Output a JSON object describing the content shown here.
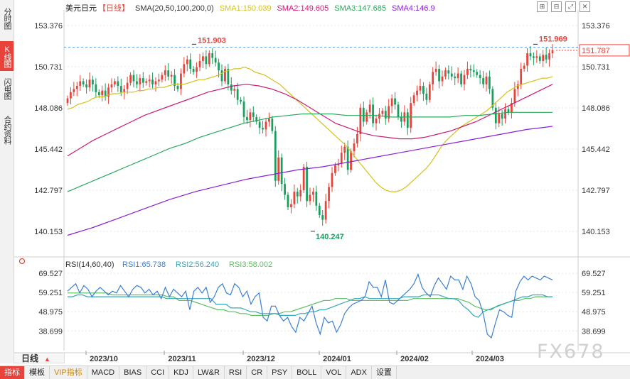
{
  "side_tabs": [
    {
      "label": "分时图",
      "active": false
    },
    {
      "label": "K线图",
      "active": true
    },
    {
      "label": "闪电图",
      "active": false
    },
    {
      "label": "合约资料",
      "active": false
    }
  ],
  "legend": {
    "title": "美元日元",
    "period": "【日线】",
    "sma_label": "SMA(20,50,100,200,0)",
    "sma1": "SMA1:150.039",
    "sma2": "SMA2:149.605",
    "sma3": "SMA3:147.685",
    "sma4": "SMA4:146.9"
  },
  "colors": {
    "up": "#e8433a",
    "down": "#1a9e5e",
    "sma1": "#d4c21b",
    "sma2": "#cc1a73",
    "sma3": "#2aa85b",
    "sma4": "#8a1fd6",
    "rsi1": "#3a7fd6",
    "rsi2": "#31a7b8",
    "rsi3": "#5cbf63",
    "grid": "#e6e6e6",
    "last": "#e8433a"
  },
  "chart_data": {
    "type": "candlestick",
    "title": "美元日元 日线",
    "y_ticks": [
      "153.376",
      "150.731",
      "148.086",
      "145.442",
      "142.797",
      "140.153"
    ],
    "ylim": [
      138.6,
      154.2
    ],
    "x_ticks": [
      "2023/10",
      "2023/11",
      "2023/12",
      "2024/01",
      "2024/02",
      "2024/03"
    ],
    "last_price": "151.787",
    "high_label": "151.903",
    "high2_label": "151.969",
    "low_label": "140.247",
    "closes": [
      148.7,
      149.1,
      149.3,
      149.5,
      149.8,
      149.6,
      149.4,
      149.9,
      149.6,
      149.1,
      148.9,
      149.2,
      148.8,
      149.4,
      149.6,
      149.8,
      149.5,
      149.1,
      149.3,
      149.7,
      150.2,
      149.8,
      149.6,
      150.0,
      149.7,
      149.8,
      149.9,
      149.6,
      149.8,
      149.9,
      150.2,
      150.5,
      150.1,
      150.2,
      149.5,
      149.3,
      150.3,
      150.9,
      151.2,
      150.6,
      150.4,
      150.7,
      151.1,
      151.4,
      150.9,
      151.6,
      151.3,
      151.0,
      150.5,
      149.8,
      150.6,
      149.6,
      149.2,
      149.3,
      148.6,
      148.5,
      147.5,
      147.3,
      147.8,
      147.5,
      147.2,
      146.8,
      146.7,
      147.2,
      147.4,
      146.6,
      143.4,
      144.9,
      143.2,
      142.5,
      141.7,
      141.9,
      142.7,
      142.4,
      142.8,
      144.3,
      142.1,
      142.5,
      142.7,
      141.8,
      141.2,
      140.9,
      142.1,
      143.0,
      143.9,
      144.4,
      144.5,
      145.2,
      145.6,
      144.1,
      145.3,
      145.8,
      146.4,
      148.1,
      147.2,
      147.8,
      148.3,
      147.1,
      147.4,
      147.7,
      147.9,
      147.4,
      148.2,
      148.7,
      148.3,
      147.5,
      147.2,
      147.8,
      146.8,
      148.4,
      148.9,
      149.2,
      149.5,
      149.0,
      148.6,
      149.6,
      150.4,
      150.6,
      149.8,
      150.1,
      150.5,
      150.3,
      150.1,
      150.0,
      150.3,
      149.6,
      150.2,
      150.6,
      150.5,
      150.4,
      150.2,
      150.0,
      149.6,
      150.1,
      149.3,
      148.1,
      147.1,
      147.7,
      147.4,
      148.0,
      147.8,
      148.4,
      149.3,
      149.6,
      150.6,
      150.8,
      151.6,
      151.4,
      151.3,
      151.4,
      151.1,
      151.5,
      151.2,
      151.6,
      151.8
    ],
    "sma1": [
      148.0,
      148.1,
      148.3,
      148.4,
      148.5,
      148.7,
      148.8,
      148.8,
      148.9,
      149.0,
      149.0,
      149.1,
      149.1,
      149.1,
      149.2,
      149.2,
      149.3,
      149.3,
      149.4,
      149.4,
      149.5,
      149.6,
      149.6,
      149.6,
      149.7,
      149.8,
      149.9,
      149.9,
      150.0,
      150.1,
      150.2,
      150.4,
      150.5,
      150.6,
      150.6,
      150.7,
      150.6,
      150.4,
      150.3,
      150.2,
      150.0,
      149.8,
      149.6,
      149.3,
      149.0,
      148.7,
      148.4,
      148.1,
      147.8,
      147.5,
      147.2,
      146.9,
      146.6,
      146.3,
      146.0,
      145.7,
      145.3,
      144.9,
      144.5,
      144.1,
      143.7,
      143.3,
      143.0,
      142.8,
      142.7,
      142.7,
      142.8,
      143.0,
      143.3,
      143.6,
      143.9,
      144.2,
      144.6,
      145.1,
      145.6,
      146.0,
      146.3,
      146.6,
      146.9,
      147.1,
      147.3,
      147.5,
      147.7,
      147.9,
      148.2,
      148.5,
      148.8,
      149.1,
      149.3,
      149.5,
      149.6,
      149.7,
      149.8,
      149.9,
      150.0,
      150.0,
      150.1
    ],
    "sma2": [
      145.0,
      145.5,
      146.0,
      146.4,
      146.8,
      147.2,
      147.6,
      147.9,
      148.2,
      148.5,
      148.8,
      149.1,
      149.3,
      149.5,
      149.6,
      149.5,
      149.3,
      149.0,
      148.6,
      148.1,
      147.6,
      147.1,
      146.8,
      146.5,
      146.3,
      146.2,
      146.1,
      146.1,
      146.2,
      146.4,
      146.6,
      146.9,
      147.2,
      147.6,
      148.0,
      148.4,
      148.8,
      149.2,
      149.6
    ],
    "sma3": [
      142.7,
      143.1,
      143.5,
      143.9,
      144.3,
      144.7,
      145.1,
      145.5,
      145.8,
      146.2,
      146.5,
      146.8,
      147.1,
      147.3,
      147.5,
      147.6,
      147.7,
      147.7,
      147.7,
      147.6,
      147.6,
      147.6,
      147.5,
      147.5,
      147.5,
      147.5,
      147.5,
      147.6,
      147.6,
      147.7,
      147.8,
      147.8,
      147.8,
      147.8
    ],
    "sma4": [
      139.9,
      140.4,
      141.0,
      141.6,
      142.2,
      142.7,
      143.1,
      143.5,
      143.8,
      144.1,
      144.3,
      144.6,
      144.9,
      145.2,
      145.5,
      145.8,
      146.1,
      146.4,
      146.7,
      146.9
    ],
    "rsi": {
      "label": "RSI(14,60,40)",
      "rsi1": "RSI1:65.738",
      "rsi2": "RSI2:56.240",
      "rsi3": "RSI3:58.002",
      "y_ticks": [
        "69.527",
        "59.251",
        "48.975",
        "38.699"
      ],
      "ylim": [
        33.5,
        74.5
      ],
      "rsi1_values": [
        60,
        62,
        64,
        59,
        63,
        61,
        57,
        60,
        62,
        60,
        58,
        60,
        59,
        63,
        60,
        57,
        61,
        63,
        62,
        59,
        61,
        58,
        60,
        56,
        62,
        57,
        61,
        59,
        57,
        60,
        50,
        60,
        62,
        59,
        62,
        54,
        57,
        62,
        64,
        59,
        58,
        64,
        62,
        57,
        60,
        53,
        57,
        59,
        46,
        44,
        52,
        52,
        47,
        44,
        46,
        41,
        38,
        46,
        44,
        48,
        52,
        43,
        37,
        46,
        43,
        44,
        38,
        42,
        48,
        51,
        53,
        54,
        55,
        57,
        65,
        62,
        62,
        57,
        66,
        54,
        53,
        55,
        57,
        59,
        61,
        64,
        69,
        62,
        59,
        57,
        63,
        67,
        64,
        61,
        68,
        66,
        66,
        61,
        68,
        64,
        57,
        55,
        48,
        37,
        35,
        43,
        50,
        49,
        47,
        46,
        60,
        65,
        68,
        66,
        68,
        67,
        66,
        68,
        67,
        66
      ],
      "rsi2_values": [
        57,
        57,
        58,
        58,
        57,
        57,
        57,
        57,
        57,
        57,
        57,
        57,
        57,
        57,
        57,
        57,
        57,
        57,
        57,
        57,
        56,
        56,
        56,
        56,
        56,
        56,
        56,
        56,
        56,
        56,
        53,
        53,
        53,
        51,
        51,
        51,
        50,
        49,
        49,
        48,
        48,
        48,
        48,
        47,
        47,
        47,
        47,
        48,
        48,
        49,
        49,
        50,
        50,
        51,
        52,
        53,
        54,
        55,
        56,
        56,
        57,
        56,
        56,
        56,
        56,
        56,
        56,
        56,
        57,
        57,
        57,
        57,
        58,
        58,
        58,
        58,
        57,
        56,
        56,
        55,
        52,
        50,
        47,
        46,
        49,
        50,
        51,
        52,
        53,
        54,
        55,
        56,
        57,
        57,
        58,
        58,
        58,
        57,
        57
      ],
      "rsi3_values": [
        59,
        59,
        59,
        59,
        59,
        59,
        59,
        59,
        58,
        58,
        58,
        58,
        58,
        58,
        58,
        58,
        58,
        58,
        57,
        57,
        55,
        55,
        55,
        54,
        53,
        52,
        51,
        50,
        50,
        49,
        49,
        48,
        48,
        47,
        47,
        47,
        47,
        48,
        48,
        49,
        49,
        50,
        51,
        52,
        53,
        54,
        55,
        55,
        56,
        56,
        56,
        55,
        55,
        55,
        55,
        55,
        55,
        55,
        55,
        55,
        55,
        55,
        56,
        56,
        56,
        56,
        56,
        56,
        56,
        56,
        56,
        55,
        54,
        52,
        51,
        50,
        50,
        52,
        53,
        54,
        55,
        55,
        56,
        56,
        57,
        57,
        57,
        57
      ]
    }
  },
  "bottom_tab": {
    "label": "日线"
  },
  "toolbar": [
    {
      "label": "指标",
      "style": "first"
    },
    {
      "label": "模板",
      "style": ""
    },
    {
      "label": "VIP指标",
      "style": "vip"
    },
    {
      "label": "MACD",
      "style": ""
    },
    {
      "label": "BIAS",
      "style": ""
    },
    {
      "label": "CCI",
      "style": ""
    },
    {
      "label": "KDJ",
      "style": ""
    },
    {
      "label": "LW&R",
      "style": ""
    },
    {
      "label": "RSI",
      "style": ""
    },
    {
      "label": "CR",
      "style": ""
    },
    {
      "label": "PSY",
      "style": ""
    },
    {
      "label": "BOLL",
      "style": ""
    },
    {
      "label": "VOL",
      "style": ""
    },
    {
      "label": "ADX",
      "style": ""
    },
    {
      "label": "设置",
      "style": ""
    }
  ],
  "watermark": "FX678"
}
